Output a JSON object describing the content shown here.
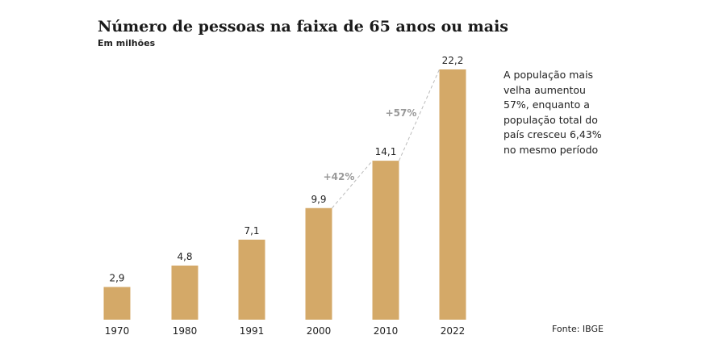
{
  "chart_data": {
    "type": "bar",
    "title": "Número de pessoas na faixa de 65 anos ou mais",
    "subtitle": "Em milhões",
    "categories": [
      "1970",
      "1980",
      "1991",
      "2000",
      "2010",
      "2022"
    ],
    "values": [
      2.9,
      4.8,
      7.1,
      9.9,
      14.1,
      22.2
    ],
    "value_labels": [
      "2,9",
      "4,8",
      "7,1",
      "9,9",
      "14,1",
      "22,2"
    ],
    "annotations": [
      {
        "text": "+42%",
        "from": "2000",
        "to": "2010"
      },
      {
        "text": "+57%",
        "from": "2010",
        "to": "2022"
      }
    ],
    "ylim": [
      0,
      22.2
    ],
    "grid": false,
    "colors": {
      "bar": "#d4a968",
      "annotation": "#999999",
      "text": "#222222"
    }
  },
  "note": "A população mais velha aumentou 57%, enquanto a população total do país cresceu 6,43% no mesmo período",
  "source": "Fonte: IBGE"
}
